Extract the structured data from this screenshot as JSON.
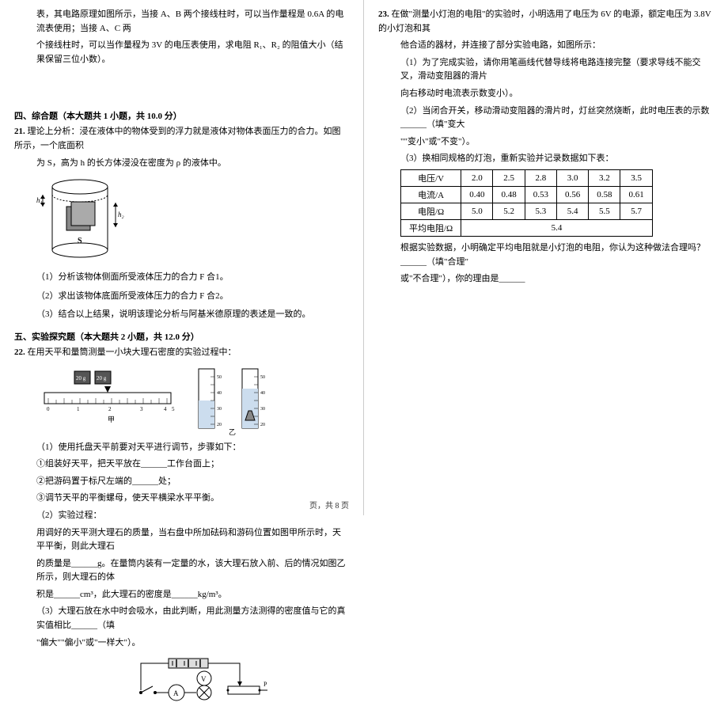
{
  "leftTop": {
    "l1": "表，其电路原理如图所示，当接 A、B 两个接线柱时，可以当作量程是 0.6A 的电流表使用；当接 A、C 两",
    "l2": "个接线柱时，可以当作量程为 3V 的电压表使用，求电阻 R₁、R₂ 的阻值大小（结果保留三位小数）。"
  },
  "sec4": {
    "title": "四、综合题（本大题共 1 小题，共 10.0 分）",
    "q21num": "21.",
    "q21a": "理论上分析：浸在液体中的物体受到的浮力就是液体对物体表面压力的合力。如图所示，一个底面积",
    "q21b": "为 S，高为 h 的长方体浸没在密度为 ρ 的液体中。",
    "q21_1": "（1）分析该物体侧面所受液体压力的合力 F 合1。",
    "q21_2": "（2）求出该物体底面所受液体压力的合力 F 合2。",
    "q21_3": "（3）结合以上结果，说明该理论分析与阿基米德原理的表述是一致的。"
  },
  "sec5": {
    "title": "五、实验探究题（本大题共 2 小题，共 12.0 分）",
    "q22num": "22.",
    "q22a": "在用天平和量筒测量一小块大理石密度的实验过程中：",
    "q22_1": "（1）使用托盘天平前要对天平进行调节，步骤如下：",
    "q22_1a": "①组装好天平，把天平放在______工作台面上；",
    "q22_1b": "②把游码置于标尺左端的______处；",
    "q22_1c": "③调节天平的平衡螺母，使天平横梁水平平衡。",
    "q22_2": "（2）实验过程：",
    "q22_2a": "用调好的天平测大理石的质量，当右盘中所加砝码和游码位置如图甲所示时，天平平衡，则此大理石",
    "q22_2b": "的质量是______g。在量筒内装有一定量的水，该大理石放入前、后的情况如图乙所示，则大理石的体",
    "q22_2c": "积是______cm³，此大理石的密度是______kg/m³。",
    "q22_3a": "（3）大理石放在水中时会吸水，由此判断，用此测量方法测得的密度值与它的真实值相比______（填",
    "q22_3b": "\"偏大\"\"偏小\"或\"一样大\"）。"
  },
  "right": {
    "q23num": "23.",
    "q23a": "在做\"测量小灯泡的电阻\"的实验时，小明选用了电压为 6V 的电源，额定电压为 3.8V 的小灯泡和其",
    "q23b": "他合适的器材，并连接了部分实验电路，如图所示：",
    "q23_1a": "（1）为了完成实验，请你用笔画线代替导线将电路连接完整（要求导线不能交叉，滑动变阻器的滑片",
    "q23_1b": "向右移动时电流表示数变小）。",
    "q23_2a": "（2）当闭合开关，移动滑动变阻器的滑片时，灯丝突然烧断，此时电压表的示数______（填\"变大",
    "q23_2b": "\"\"变小\"或\"不变\"）。",
    "q23_3": "（3）换相同规格的灯泡，重新实验并记录数据如下表：",
    "table": {
      "rows": [
        [
          "电压/V",
          "2.0",
          "2.5",
          "2.8",
          "3.0",
          "3.2",
          "3.5"
        ],
        [
          "电流/A",
          "0.40",
          "0.48",
          "0.53",
          "0.56",
          "0.58",
          "0.61"
        ],
        [
          "电阻/Ω",
          "5.0",
          "5.2",
          "5.3",
          "5.4",
          "5.5",
          "5.7"
        ],
        [
          "平均电阻/Ω",
          "5.4",
          "",
          "",
          "",
          "",
          ""
        ]
      ]
    },
    "q23_4a": "根据实验数据，小明确定平均电阻就是小灯泡的电阻，你认为这种做法合理吗？______（填\"合理\"",
    "q23_4b": "或\"不合理\"），你的理由是______"
  },
  "footer": "页，共 8 页"
}
